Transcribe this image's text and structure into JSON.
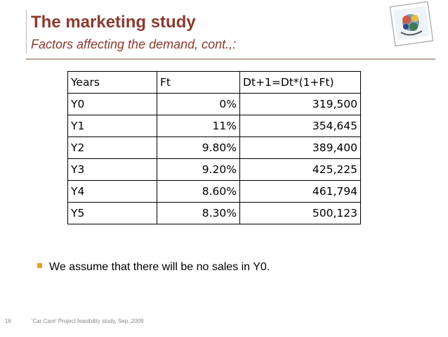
{
  "slide": {
    "title": "The marketing study",
    "subtitle": "Factors affecting the demand, cont.,:",
    "logo_icon": "car-care-logo-icon"
  },
  "table": {
    "headers": [
      "Years",
      "Ft",
      "Dt+1=Dt*(1+Ft)"
    ],
    "rows": [
      [
        "Y0",
        "0%",
        "319,500"
      ],
      [
        "Y1",
        "11%",
        "354,645"
      ],
      [
        "Y2",
        "9.80%",
        "389,400"
      ],
      [
        "Y3",
        "9.20%",
        "425,225"
      ],
      [
        "Y4",
        "8.60%",
        "461,794"
      ],
      [
        "Y5",
        "8.30%",
        "500,123"
      ]
    ]
  },
  "bullet": {
    "text": "We assume that there will be no sales in Y0.",
    "color": "#e8a020"
  },
  "footer": {
    "page_number": "16",
    "text": "'Car Care' Project feasibility study,  Sep.,2009"
  },
  "colors": {
    "title": "#8b3a2f",
    "rule": "#b9a79d"
  }
}
